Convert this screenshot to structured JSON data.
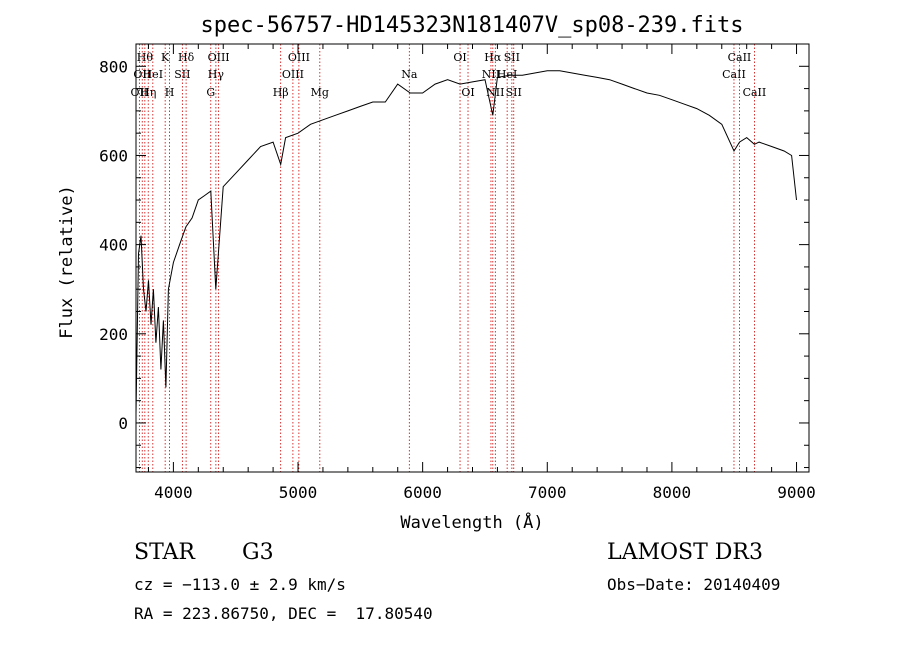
{
  "chart_data": {
    "type": "line",
    "title": "spec-56757-HD145323N181407V_sp08-239.fits",
    "xlabel": "Wavelength (Å)",
    "ylabel": "Flux (relative)",
    "xlim": [
      3700,
      9100
    ],
    "ylim": [
      -110,
      850
    ],
    "xticks": [
      4000,
      5000,
      6000,
      7000,
      8000,
      9000
    ],
    "yticks": [
      0,
      200,
      400,
      600,
      800
    ],
    "grid": false,
    "series": [
      {
        "name": "spectrum",
        "x": [
          3700,
          3720,
          3740,
          3760,
          3780,
          3800,
          3820,
          3840,
          3860,
          3880,
          3900,
          3920,
          3940,
          3960,
          3980,
          4000,
          4050,
          4100,
          4150,
          4200,
          4250,
          4300,
          4340,
          4400,
          4500,
          4600,
          4700,
          4800,
          4861,
          4900,
          5000,
          5100,
          5200,
          5300,
          5400,
          5500,
          5600,
          5700,
          5800,
          5900,
          6000,
          6100,
          6200,
          6300,
          6400,
          6500,
          6563,
          6600,
          6700,
          6800,
          6900,
          7000,
          7100,
          7200,
          7300,
          7400,
          7500,
          7600,
          7700,
          7800,
          7900,
          8000,
          8100,
          8200,
          8300,
          8400,
          8498,
          8542,
          8600,
          8662,
          8700,
          8800,
          8900,
          8960,
          9000
        ],
        "y": [
          20,
          380,
          420,
          300,
          250,
          320,
          220,
          300,
          180,
          260,
          120,
          230,
          80,
          300,
          330,
          360,
          400,
          440,
          460,
          500,
          510,
          520,
          300,
          530,
          560,
          590,
          620,
          630,
          580,
          640,
          650,
          670,
          680,
          690,
          700,
          710,
          720,
          720,
          760,
          740,
          740,
          760,
          770,
          760,
          765,
          770,
          690,
          775,
          780,
          780,
          785,
          790,
          790,
          785,
          780,
          775,
          770,
          760,
          750,
          740,
          735,
          725,
          715,
          705,
          690,
          670,
          610,
          630,
          640,
          625,
          630,
          620,
          610,
          600,
          500
        ]
      }
    ],
    "line_markers": [
      {
        "wavelength": 3727,
        "label": "OII",
        "row": 2
      },
      {
        "wavelength": 3750,
        "label": "OII",
        "row": 1
      },
      {
        "wavelength": 3771,
        "label": "Hθ",
        "row": 0
      },
      {
        "wavelength": 3798,
        "label": "Hη",
        "row": 2
      },
      {
        "wavelength": 3835,
        "label": "HeI",
        "row": 1
      },
      {
        "wavelength": 3934,
        "label": "K",
        "row": 0
      },
      {
        "wavelength": 3969,
        "label": "H",
        "row": 2
      },
      {
        "wavelength": 4072,
        "label": "SII",
        "row": 1
      },
      {
        "wavelength": 4102,
        "label": "Hδ",
        "row": 0
      },
      {
        "wavelength": 4300,
        "label": "G",
        "row": 2
      },
      {
        "wavelength": 4341,
        "label": "Hγ",
        "row": 1
      },
      {
        "wavelength": 4363,
        "label": "OIII",
        "row": 0
      },
      {
        "wavelength": 4861,
        "label": "Hβ",
        "row": 2
      },
      {
        "wavelength": 4959,
        "label": "OIII",
        "row": 1
      },
      {
        "wavelength": 5007,
        "label": "OIII",
        "row": 0
      },
      {
        "wavelength": 5175,
        "label": "Mg",
        "row": 2
      },
      {
        "wavelength": 5893,
        "label": "Na",
        "row": 1
      },
      {
        "wavelength": 6300,
        "label": "OI",
        "row": 0
      },
      {
        "wavelength": 6364,
        "label": "OI",
        "row": 2
      },
      {
        "wavelength": 6548,
        "label": "NII",
        "row": 1
      },
      {
        "wavelength": 6563,
        "label": "Hα",
        "row": 0
      },
      {
        "wavelength": 6583,
        "label": "NII",
        "row": 2
      },
      {
        "wavelength": 6678,
        "label": "HeI",
        "row": 1
      },
      {
        "wavelength": 6716,
        "label": "SII",
        "row": 0
      },
      {
        "wavelength": 6731,
        "label": "SII",
        "row": 2
      },
      {
        "wavelength": 8498,
        "label": "CaII",
        "row": 1
      },
      {
        "wavelength": 8542,
        "label": "CaII",
        "row": 0
      },
      {
        "wavelength": 8662,
        "label": "CaII",
        "row": 2
      }
    ]
  },
  "footer": {
    "class_label": "STAR",
    "subclass": "G3",
    "survey": "LAMOST DR3",
    "cz": "cz = −113.0 ± 2.9 km/s",
    "obs_date": "Obs−Date: 20140409",
    "coords": "RA = 223.86750, DEC =  17.80540"
  }
}
